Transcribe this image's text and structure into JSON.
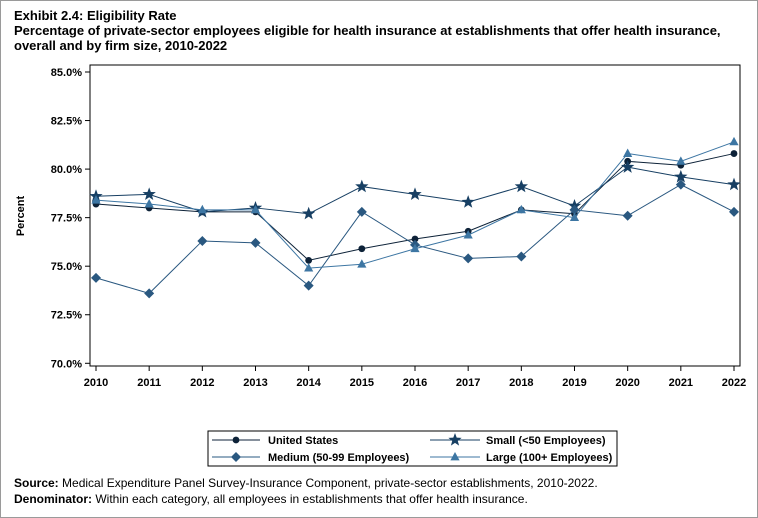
{
  "header": {
    "exhibit": "Exhibit 2.4: Eligibility Rate",
    "title_line1": "Percentage of private-sector employees eligible for health insurance at establishments that offer health insurance,",
    "title_line2": "overall and by firm size, 2010-2022"
  },
  "footer": {
    "source_label": "Source:",
    "source_text": "Medical Expenditure Panel Survey-Insurance Component, private-sector establishments, 2010-2022.",
    "denominator_label": "Denominator:",
    "denominator_text": "Within each category, all employees in establishments that offer health insurance."
  },
  "colors": {
    "united_states": "#0d2238",
    "small": "#173f63",
    "medium": "#2a5880",
    "large": "#3d76a3"
  },
  "chart_data": {
    "type": "line",
    "title": "",
    "xlabel": "",
    "ylabel": "Percent",
    "x": [
      2010,
      2011,
      2012,
      2013,
      2014,
      2015,
      2016,
      2017,
      2018,
      2019,
      2020,
      2021,
      2022
    ],
    "x_tick_labels": [
      "2010",
      "2011",
      "2012",
      "2013",
      "2014",
      "2015",
      "2016",
      "2017",
      "2018",
      "2019",
      "2020",
      "2021",
      "2022"
    ],
    "ylim": [
      69.5,
      85.0
    ],
    "y_ticks": [
      70.0,
      72.5,
      75.0,
      77.5,
      80.0,
      82.5,
      85.0
    ],
    "y_tick_labels": [
      "70.0%",
      "72.5%",
      "75.0%",
      "77.5%",
      "80.0%",
      "82.5%",
      "85.0%"
    ],
    "grid": false,
    "legend_position": "bottom",
    "series": [
      {
        "name": "United States",
        "marker": "circle",
        "color_key": "united_states",
        "values": [
          78.2,
          78.0,
          77.8,
          77.8,
          75.3,
          75.9,
          76.4,
          76.8,
          77.9,
          77.7,
          80.4,
          80.2,
          80.8
        ]
      },
      {
        "name": "Small (<50 Employees)",
        "marker": "star",
        "color_key": "small",
        "values": [
          78.6,
          78.7,
          77.8,
          78.0,
          77.7,
          79.1,
          78.7,
          78.3,
          79.1,
          78.1,
          80.1,
          79.6,
          79.2
        ]
      },
      {
        "name": "Medium (50-99 Employees)",
        "marker": "diamond",
        "color_key": "medium",
        "values": [
          74.4,
          73.6,
          76.3,
          76.2,
          74.0,
          77.8,
          76.1,
          75.4,
          75.5,
          77.9,
          77.6,
          79.2,
          77.8
        ]
      },
      {
        "name": "Large (100+ Employees)",
        "marker": "triangle",
        "color_key": "large",
        "values": [
          78.4,
          78.2,
          77.9,
          77.9,
          74.9,
          75.1,
          75.9,
          76.6,
          77.9,
          77.5,
          80.8,
          80.4,
          81.4
        ]
      }
    ]
  }
}
